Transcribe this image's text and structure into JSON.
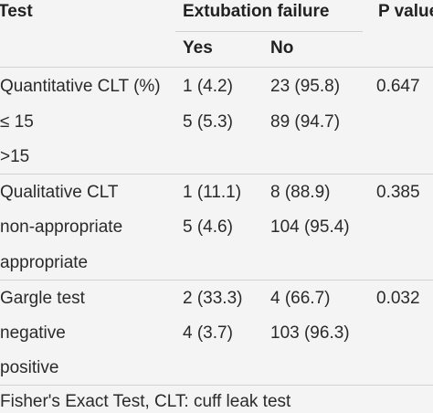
{
  "table": {
    "headers": {
      "test": "Test",
      "group": "Extubation failure",
      "p_value": "P value",
      "yes": "Yes",
      "no": "No"
    },
    "sections": [
      {
        "label": "Quantitative CLT (%)",
        "yes": "1 (4.2)",
        "no": "23 (95.8)",
        "p": "0.647",
        "rows": [
          {
            "label": "≤ 15",
            "yes": "5 (5.3)",
            "no": "89 (94.7)"
          },
          {
            "label": ">15",
            "yes": "",
            "no": ""
          }
        ]
      },
      {
        "label": "Qualitative CLT",
        "yes": "1 (11.1)",
        "no": "8 (88.9)",
        "p": "0.385",
        "rows": [
          {
            "label": "non-appropriate",
            "yes": "5 (4.6)",
            "no": "104 (95.4)"
          },
          {
            "label": "appropriate",
            "yes": "",
            "no": ""
          }
        ]
      },
      {
        "label": "Gargle test",
        "yes": "2 (33.3)",
        "no": "4 (66.7)",
        "p": "0.032",
        "rows": [
          {
            "label": "negative",
            "yes": "4 (3.7)",
            "no": "103 (96.3)"
          },
          {
            "label": "positive",
            "yes": "",
            "no": ""
          }
        ]
      }
    ],
    "footnote": "Fisher's Exact Test, CLT: cuff leak test"
  }
}
